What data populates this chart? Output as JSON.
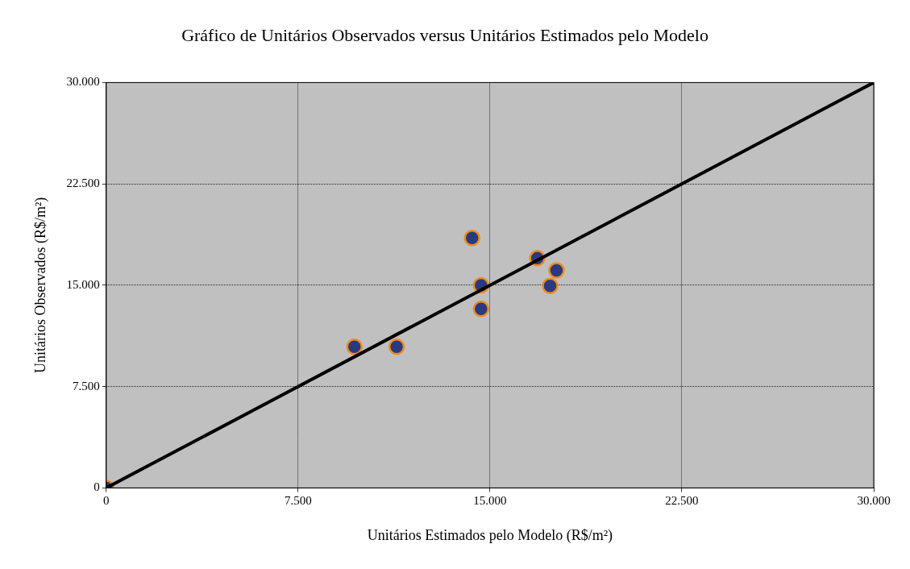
{
  "chart_data": {
    "type": "scatter",
    "title": "Gráfico de Unitários Observados versus Unitários Estimados pelo Modelo",
    "xlabel": "Unitários Estimados pelo Modelo (R$/m²)",
    "ylabel": "Unitários Observados (R$/m²)",
    "xlim": [
      0,
      30000
    ],
    "ylim": [
      0,
      30000
    ],
    "xticks": [
      0,
      {
        "value": 7500,
        "label": "7.500"
      },
      {
        "value": 15000,
        "label": "15.000"
      },
      {
        "value": 22500,
        "label": "22.500"
      },
      {
        "value": 30000,
        "label": "30.000"
      }
    ],
    "yticks": [
      0,
      {
        "value": 7500,
        "label": "7.500"
      },
      {
        "value": 15000,
        "label": "15.000"
      },
      {
        "value": 22500,
        "label": "22.500"
      },
      {
        "value": 30000,
        "label": "30.000"
      }
    ],
    "grid": true,
    "legend": false,
    "marker": "circle",
    "series": [
      {
        "type": "line",
        "color": "#000000",
        "line_style": "solid",
        "marker": "none",
        "x": [
          0,
          30000
        ],
        "values": [
          0,
          30000
        ]
      },
      {
        "color": "#2b3a7e",
        "x": [
          0,
          9700,
          11350,
          14300,
          14650,
          14650,
          16850,
          17350,
          17600
        ],
        "values": [
          0,
          10450,
          10450,
          18500,
          15000,
          13250,
          17000,
          14950,
          16100
        ]
      }
    ]
  }
}
